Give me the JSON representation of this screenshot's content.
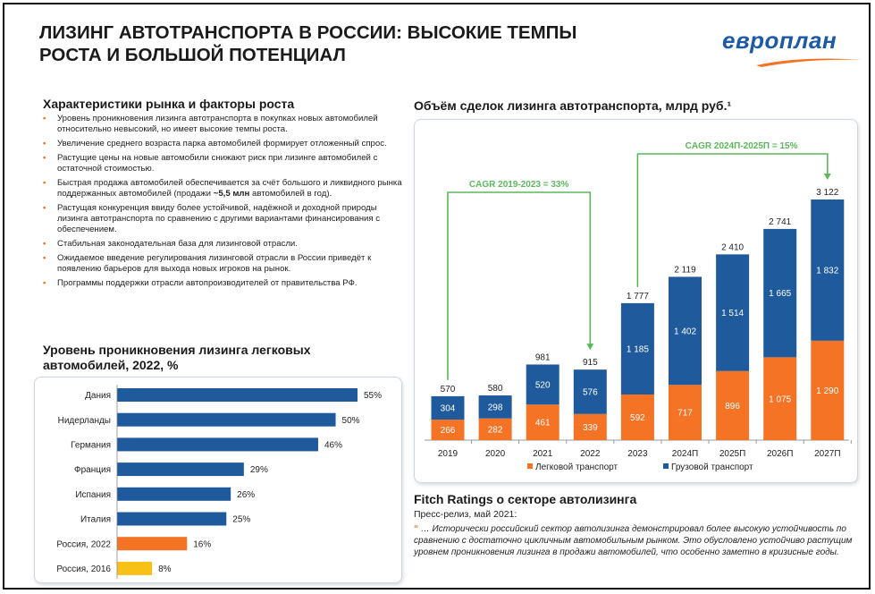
{
  "page": {
    "title_line1": "ЛИЗИНГ АВТОТРАНСПОРТА В РОССИИ: ВЫСОКИЕ ТЕМПЫ",
    "title_line2": "РОСТА И БОЛЬШОЙ ПОТЕНЦИАЛ",
    "logo_text": "европлан"
  },
  "colors": {
    "blue": "#1f5b9c",
    "orange": "#f47324",
    "yellow": "#f8c118",
    "green": "#5cb85c",
    "logo_blue": "#1d5aa5"
  },
  "market": {
    "heading": "Характеристики рынка и факторы роста",
    "bullets": [
      {
        "text": "Уровень проникновения лизинга автотранспорта в покупках новых автомобилей относительно невысокий, но имеет высокие темпы роста."
      },
      {
        "text": "Увеличение среднего возраста парка автомобилей формирует отложенный спрос."
      },
      {
        "text": "Растущие цены на новые автомобили снижают риск при лизинге автомобилей с остаточной стоимостью."
      },
      {
        "pre": "Быстрая продажа автомобилей обеспечивается за счёт большого и ликвидного рынка поддержанных автомобилей (продажи ",
        "bold": "~5,5 млн",
        "post": " автомобилей в год)."
      },
      {
        "text": "Растущая конкуренция ввиду более устойчивой, надёжной и доходной природы лизинга автотранспорта по сравнению с другими вариантами финансирования с обеспечением."
      },
      {
        "text": "Стабильная законодательная база для лизинговой отрасли."
      },
      {
        "text": "Ожидаемое введение регулирования лизинговой отрасли в России приведёт к появлению барьеров для выхода новых игроков на рынок."
      },
      {
        "text": "Программы поддержки отрасли автопроизводителей от правительства РФ."
      }
    ]
  },
  "fitch": {
    "heading": "Fitch Ratings о секторе автолизинга",
    "subtitle": "Пресс-релиз, май 2021:",
    "quote_mark": "“",
    "quote": "… Исторически российский сектор автолизинга демонстрировал более высокую устойчивость по сравнению с достаточно цикличным автомобильным рынком. Это обусловлено устойчиво растущим уровнем проникновения лизинга в продажи автомобилей, что особенно заметно в кризисные годы."
  },
  "chart_data": [
    {
      "type": "bar",
      "orientation": "horizontal",
      "title": "Уровень проникновения лизинга легковых автомобилей, 2022, %",
      "title_line1": "Уровень проникновения лизинга легковых",
      "title_line2": "автомобилей, 2022, %",
      "categories": [
        "Дания",
        "Нидерланды",
        "Германия",
        "Франция",
        "Испания",
        "Италия",
        "Россия, 2022",
        "Россия, 2016"
      ],
      "values": [
        55,
        50,
        46,
        29,
        26,
        25,
        16,
        8
      ],
      "value_labels": [
        "55%",
        "50%",
        "46%",
        "29%",
        "26%",
        "25%",
        "16%",
        "8%"
      ],
      "bar_colors": [
        "#1f5b9c",
        "#1f5b9c",
        "#1f5b9c",
        "#1f5b9c",
        "#1f5b9c",
        "#1f5b9c",
        "#f47324",
        "#f8c118"
      ],
      "xlim": [
        0,
        55
      ],
      "grid": false
    },
    {
      "type": "bar",
      "stacked": true,
      "title": "Объём сделок лизинга автотранспорта, млрд руб.¹",
      "categories": [
        "2019",
        "2020",
        "2021",
        "2022",
        "2023",
        "2024П",
        "2025П",
        "2026П",
        "2027П"
      ],
      "series": [
        {
          "name": "Легковой транспорт",
          "color": "#f47324",
          "values": [
            266,
            282,
            461,
            339,
            592,
            717,
            896,
            1075,
            1290
          ],
          "labels": [
            "266",
            "282",
            "461",
            "339",
            "592",
            "717",
            "896",
            "1 075",
            "1 290"
          ]
        },
        {
          "name": "Грузовой транспорт",
          "color": "#1f5b9c",
          "values": [
            304,
            298,
            520,
            576,
            1185,
            1402,
            1514,
            1665,
            1832
          ],
          "labels": [
            "304",
            "298",
            "520",
            "576",
            "1 185",
            "1 402",
            "1 514",
            "1 665",
            "1 832"
          ]
        }
      ],
      "totals": [
        570,
        580,
        981,
        915,
        1777,
        2119,
        2410,
        2741,
        3122
      ],
      "total_labels": [
        "570",
        "580",
        "981",
        "915",
        "1 777",
        "2 119",
        "2 410",
        "2 741",
        "3 122"
      ],
      "annotations": [
        {
          "text": "CAGR 2019-2023 = 33%",
          "from": "2019",
          "to": "2022",
          "color": "#5cb85c"
        },
        {
          "text": "CAGR 2024П-2025П = 15%",
          "from": "2023",
          "to": "2027П",
          "color": "#5cb85c"
        }
      ],
      "ylim": [
        0,
        3122
      ],
      "legend": "bottom",
      "grid": false
    }
  ]
}
